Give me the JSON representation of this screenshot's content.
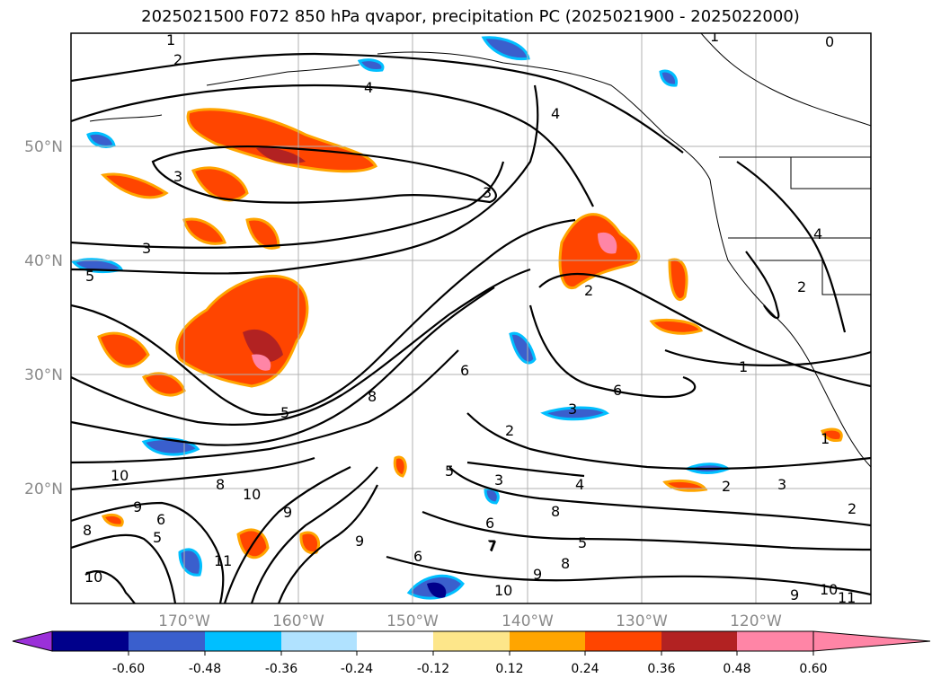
{
  "title": "2025021500 F072 850 hPa qvapor, precipitation PC (2025021900 - 2025022000)",
  "lon_ticks": [
    "170°W",
    "160°W",
    "150°W",
    "140°W",
    "130°W",
    "120°W"
  ],
  "lat_ticks": [
    "50°N",
    "40°N",
    "30°N",
    "20°N"
  ],
  "contour_labels": [
    "1",
    "2",
    "4",
    "3",
    "3",
    "5",
    "3",
    "5",
    "4",
    "2",
    "1",
    "0",
    "4",
    "2",
    "1",
    "6",
    "8",
    "10",
    "9",
    "6",
    "5",
    "8",
    "10",
    "9",
    "11",
    "8",
    "9",
    "10",
    "7",
    "6",
    "2",
    "3",
    "5",
    "6",
    "4",
    "3",
    "8",
    "5",
    "6",
    "7",
    "8",
    "9",
    "10",
    "2",
    "3",
    "1",
    "2",
    "9",
    "10",
    "11"
  ],
  "colorbar": {
    "colors": [
      "#9b30d9",
      "#00008b",
      "#3a5fcd",
      "#00bfff",
      "#b0e2ff",
      "#ffffff",
      "#fde68a",
      "#ffa500",
      "#ff4500",
      "#b22222",
      "#ff85a6"
    ],
    "tick_labels": [
      "-0.60",
      "-0.48",
      "-0.36",
      "-0.24",
      "-0.12",
      "0.12",
      "0.24",
      "0.36",
      "0.48",
      "0.60"
    ]
  }
}
